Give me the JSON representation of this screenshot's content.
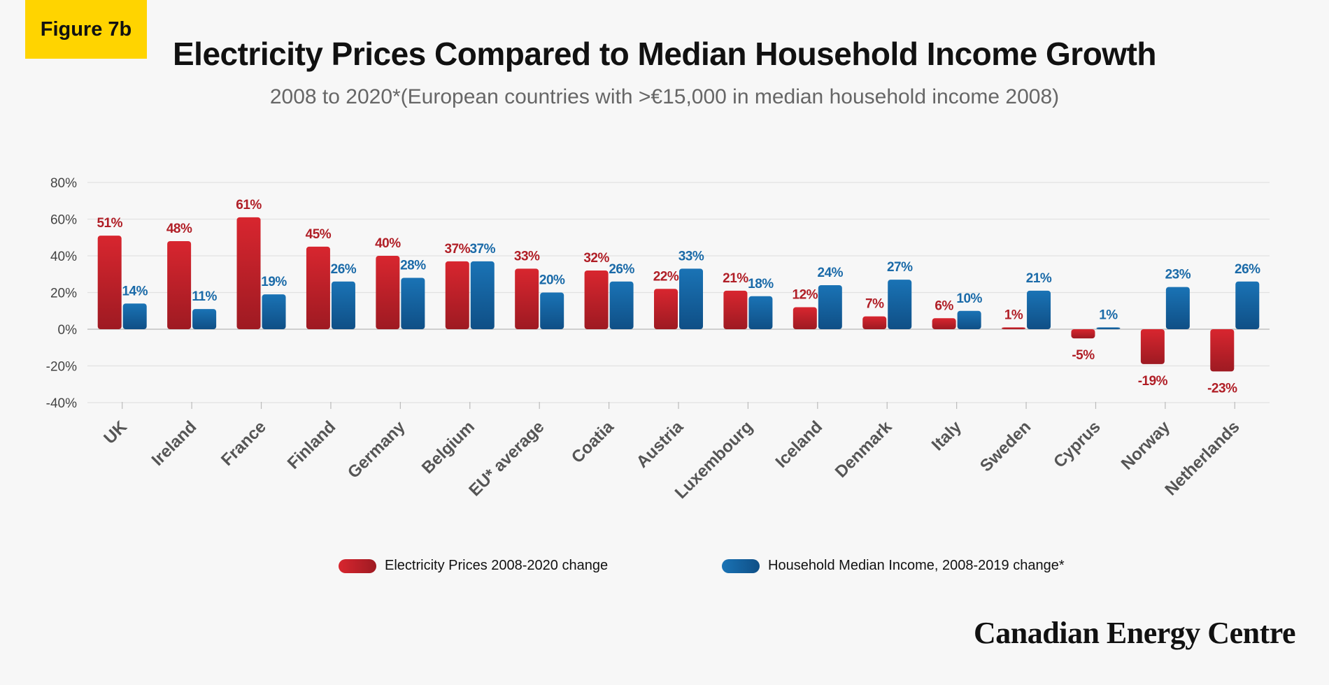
{
  "badge": "Figure 7b",
  "brand": "Canadian Energy Centre",
  "colors": {
    "electricity": "#c8232c",
    "income": "#1f6fa8"
  },
  "chart_data": {
    "type": "bar",
    "title": "Electricity Prices Compared to Median Household Income Growth",
    "subtitle": "2008 to 2020*(European countries with >€15,000 in median household income 2008)",
    "categories": [
      "UK",
      "Ireland",
      "France",
      "Finland",
      "Germany",
      "Belgium",
      "EU* average",
      "Coatia",
      "Austria",
      "Luxembourg",
      "Iceland",
      "Denmark",
      "Italy",
      "Sweden",
      "Cyprus",
      "Norway",
      "Netherlands"
    ],
    "series": [
      {
        "name": "Electricity Prices 2008-2020 change",
        "values": [
          51,
          48,
          61,
          45,
          40,
          37,
          33,
          32,
          22,
          21,
          12,
          7,
          6,
          1,
          -5,
          -19,
          -23
        ]
      },
      {
        "name": "Household Median Income, 2008-2019 change*",
        "values": [
          14,
          11,
          19,
          26,
          28,
          37,
          20,
          26,
          33,
          18,
          24,
          27,
          10,
          21,
          1,
          23,
          26
        ]
      }
    ],
    "data_labels": [
      [
        "51%",
        "48%",
        "61%",
        "45%",
        "40%",
        "37%",
        "33%",
        "32%",
        "22%",
        "21%",
        "12%",
        "7%",
        "6%",
        "1%",
        "-5%",
        "-19%",
        "-23%"
      ],
      [
        "14%",
        "11%",
        "19%",
        "26%",
        "28%",
        "37%",
        "20%",
        "26%",
        "33%",
        "18%",
        "24%",
        "27%",
        "10%",
        "21%",
        "1%",
        "23%",
        "26%"
      ]
    ],
    "y_ticks": [
      80,
      60,
      40,
      20,
      0,
      -20,
      -40
    ],
    "y_tick_labels": [
      "80%",
      "60%",
      "40%",
      "20%",
      "0%",
      "-20%",
      "-40%"
    ],
    "ylim": [
      -40,
      80
    ],
    "grid": true,
    "legend": "bottom"
  }
}
